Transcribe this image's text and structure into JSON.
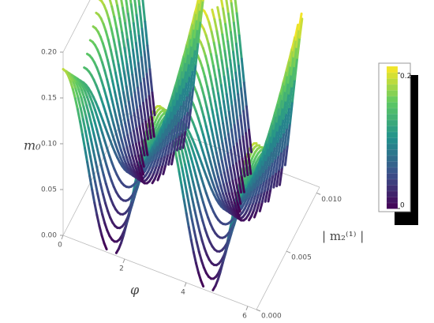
{
  "chart_data": {
    "type": "surface3d",
    "x_label": "φ",
    "y_label": "| m₂⁽¹⁾ |",
    "z_label": "m₀",
    "xlim": [
      0,
      6.283
    ],
    "xticks": [
      0,
      2,
      4,
      6
    ],
    "ylim": [
      0,
      0.0105
    ],
    "yticks": [
      {
        "value": 0,
        "label": "0.000"
      },
      {
        "value": 0.005,
        "label": "0.005"
      },
      {
        "value": 0.01,
        "label": "0.010"
      }
    ],
    "zlim": [
      0,
      0.2
    ],
    "zticks": [
      {
        "value": 0,
        "label": "0.00"
      },
      {
        "value": 0.05,
        "label": "0.05"
      },
      {
        "value": 0.1,
        "label": "0.10"
      },
      {
        "value": 0.15,
        "label": "0.15"
      },
      {
        "value": 0.2,
        "label": "0.20"
      }
    ],
    "colorbar_lim": [
      0,
      0.21
    ],
    "colorbar_ticks": [
      0,
      0.2
    ],
    "colormap": [
      "#440154",
      "#3b528b",
      "#21918c",
      "#5ec962",
      "#fde725"
    ]
  }
}
